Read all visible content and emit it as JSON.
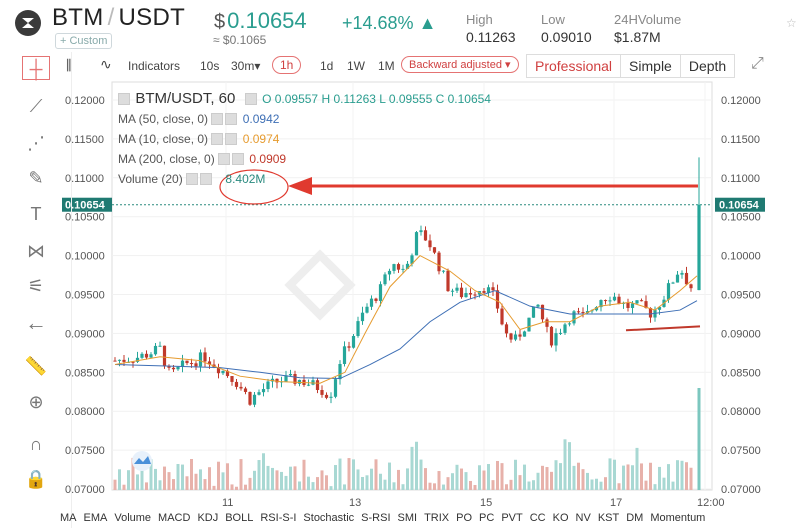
{
  "header": {
    "base": "BTM",
    "quote": "USDT",
    "custom_label": "+ Custom",
    "price_symbol": "$",
    "price": "0.10654",
    "approx": "≈ $0.1065",
    "change": "+14.68%",
    "change_arrow": "▲",
    "high_label": "High",
    "high_value": "0.11263",
    "low_label": "Low",
    "low_value": "0.09010",
    "volume_label": "24HVolume",
    "volume_value": "$1.87M"
  },
  "toolbar": {
    "indicators": "Indicators",
    "intervals": [
      "10s",
      "30m",
      "1h",
      "1d",
      "1W",
      "1M"
    ],
    "selected_interval": "1h",
    "adjust": "Backward adjusted",
    "modes": [
      "Professional",
      "Simple",
      "Depth"
    ],
    "active_mode": "Professional"
  },
  "legend": {
    "title": "BTM/USDT, 60",
    "ohlc": {
      "o": "O 0.09557",
      "h": "H 0.11263",
      "l": "L 0.09555",
      "c": "C 0.10654"
    },
    "ma50": {
      "label": "MA (50, close, 0)",
      "value": "0.0942",
      "color": "#3e6fb5"
    },
    "ma10": {
      "label": "MA (10, close, 0)",
      "value": "0.0974",
      "color": "#e69b2f"
    },
    "ma200": {
      "label": "MA (200, close, 0)",
      "value": "0.0909",
      "color": "#c0392b"
    },
    "volume": {
      "label": "Volume (20)",
      "value": "8.402M",
      "color": "#2a8a7f"
    }
  },
  "axis": {
    "price_ticks": [
      "0.12000",
      "0.11500",
      "0.11000",
      "0.10500",
      "0.10000",
      "0.09500",
      "0.09000",
      "0.08500",
      "0.08000",
      "0.07500",
      "0.07000"
    ],
    "current_price_label": "0.10654",
    "time_ticks": [
      "11",
      "13",
      "15",
      "17",
      "12:00"
    ]
  },
  "colors": {
    "up": "#26a69a",
    "down": "#c0392b",
    "annotation": "#e03a2f"
  },
  "indicator_bar": [
    "MA",
    "EMA",
    "Volume",
    "MACD",
    "KDJ",
    "BOLL",
    "RSI-S-I",
    "Stochastic",
    "S-RSI",
    "SMI",
    "TRIX",
    "PO",
    "PC",
    "PVT",
    "CC",
    "KO",
    "NV",
    "KST",
    "DM",
    "Momentum"
  ],
  "tool_icons": [
    "crosshair-icon",
    "trend-line-icon",
    "fib-icon",
    "brush-icon",
    "text-icon",
    "pattern-icon",
    "measure-icon",
    "back-arrow-icon",
    "ruler-icon",
    "zoom-icon",
    "magnet-icon",
    "lock-icon"
  ]
}
